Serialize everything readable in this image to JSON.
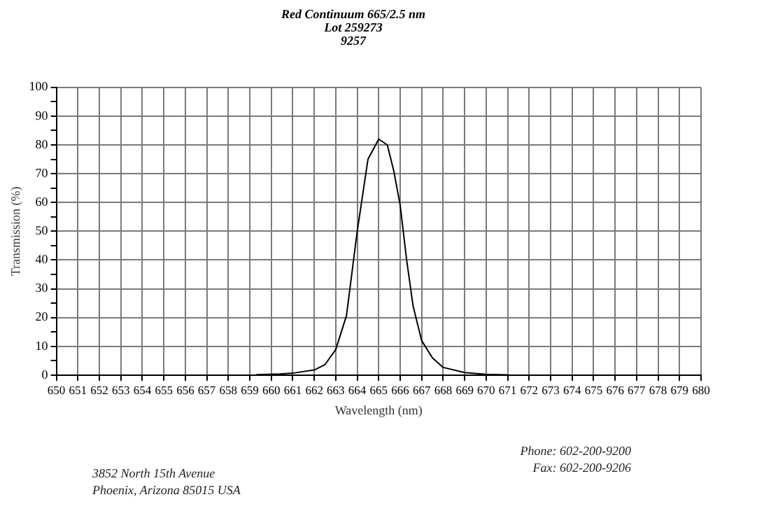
{
  "chart_data": {
    "type": "line",
    "title": [
      "Red Continuum 665/2.5 nm",
      "Lot 259273",
      "9257"
    ],
    "xlabel": "Wavelength (nm)",
    "ylabel": "Transmission (%)",
    "annotations": [
      "3852 North 15th Avenue",
      "Phoenix, Arizona 85015 USA",
      "Phone:  602-200-9200",
      "Fax:  602-200-9206"
    ],
    "xlim": [
      650,
      680
    ],
    "xticks": [
      650,
      651,
      652,
      653,
      654,
      655,
      656,
      657,
      658,
      659,
      660,
      661,
      662,
      663,
      664,
      665,
      666,
      667,
      668,
      669,
      670,
      671,
      672,
      673,
      674,
      675,
      676,
      677,
      678,
      679,
      680
    ],
    "ylim": [
      0,
      100
    ],
    "yticks": [
      0,
      {
        "value": 5,
        "label": null
      },
      10,
      {
        "value": 15,
        "label": null
      },
      20,
      {
        "value": 25,
        "label": null
      },
      30,
      {
        "value": 35,
        "label": null
      },
      40,
      {
        "value": 45,
        "label": null
      },
      50,
      {
        "value": 55,
        "label": null
      },
      60,
      {
        "value": 65,
        "label": null
      },
      70,
      {
        "value": 75,
        "label": null
      },
      80,
      {
        "value": 85,
        "label": null
      },
      90,
      {
        "value": 95,
        "label": null
      },
      100
    ],
    "grid": true,
    "legend": false,
    "marker": "none",
    "line_style": "solid",
    "series": [
      {
        "color": "#000000",
        "x": [
          659.3,
          660.4,
          661,
          662,
          662.5,
          663,
          663.5,
          664,
          664.5,
          665,
          665.4,
          665.7,
          666,
          666.3,
          666.6,
          667,
          667.5,
          668,
          669,
          670,
          671
        ],
        "values": [
          0.2,
          0.4,
          0.7,
          1.8,
          3.7,
          8.9,
          20.7,
          50,
          75,
          82,
          80,
          71,
          59,
          40,
          24,
          12,
          6,
          2.7,
          0.9,
          0.3,
          0.1
        ]
      }
    ]
  }
}
